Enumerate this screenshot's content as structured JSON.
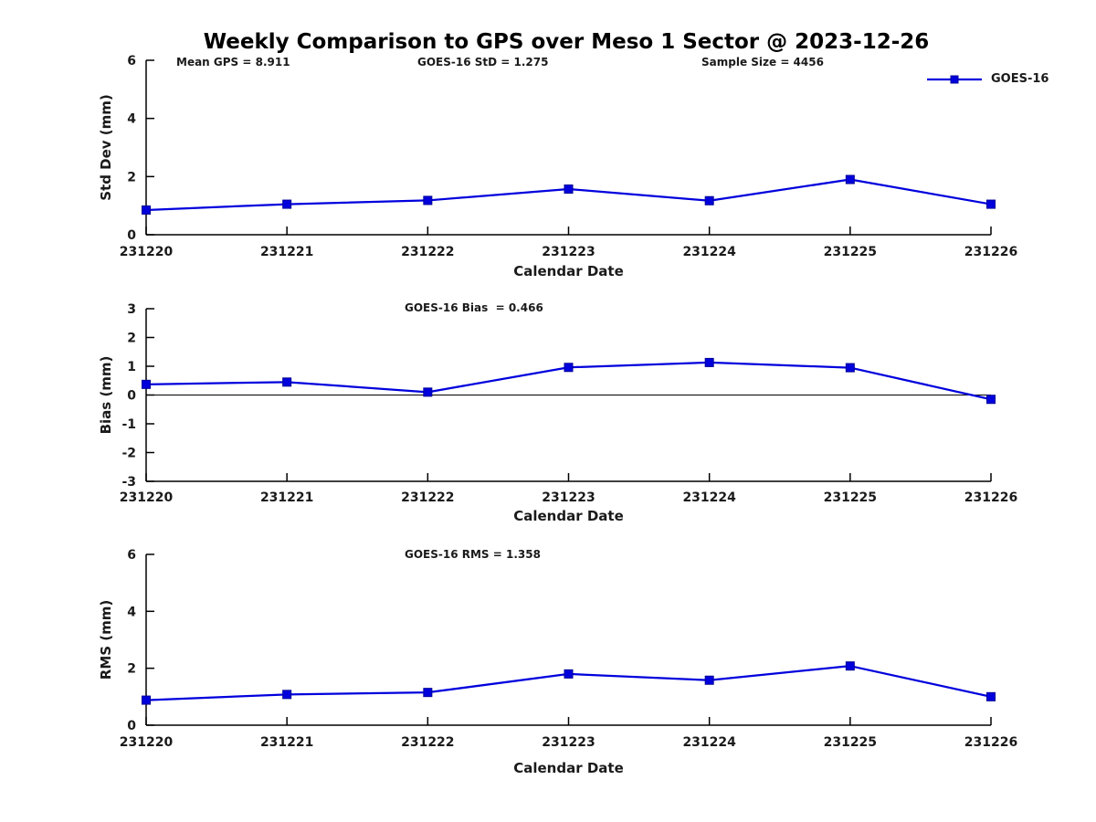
{
  "title": "Weekly Comparison to GPS over Meso 1 Sector @ 2023-12-26",
  "legend": {
    "label": "GOES-16"
  },
  "colors": {
    "series_line": "#0000dd",
    "marker_fill": "#0000dd",
    "marker_edge": "#000099",
    "axis": "#000000",
    "text": "#1a1a1a"
  },
  "subplot_annotations": {
    "mean_gps": "Mean GPS = 8.911",
    "goes16_std": "GOES-16 StD = 1.275",
    "sample_size": "Sample Size = 4456",
    "goes16_bias": "GOES-16 Bias  = 0.466",
    "goes16_rms": "GOES-16 RMS = 1.358"
  },
  "chart_data": [
    {
      "type": "line",
      "name": "std-dev-weekly",
      "title": "",
      "categories": [
        "231220",
        "231221",
        "231222",
        "231223",
        "231224",
        "231225",
        "231226"
      ],
      "series": [
        {
          "name": "GOES-16",
          "values": [
            0.85,
            1.05,
            1.18,
            1.57,
            1.17,
            1.9,
            1.05
          ]
        }
      ],
      "xlabel": "Calendar Date",
      "ylabel": "Std Dev (mm)",
      "ylim": [
        0,
        6
      ],
      "yticks": [
        0,
        2,
        4,
        6
      ],
      "zero_line": false,
      "grid": false,
      "legend_position": "top-right"
    },
    {
      "type": "line",
      "name": "bias-weekly",
      "title": "",
      "categories": [
        "231220",
        "231221",
        "231222",
        "231223",
        "231224",
        "231225",
        "231226"
      ],
      "series": [
        {
          "name": "GOES-16",
          "values": [
            0.37,
            0.45,
            0.1,
            0.96,
            1.13,
            0.95,
            -0.15
          ]
        }
      ],
      "xlabel": "Calendar Date",
      "ylabel": "Bias (mm)",
      "ylim": [
        -3,
        3
      ],
      "yticks": [
        -3,
        -2,
        -1,
        0,
        1,
        2,
        3
      ],
      "zero_line": true,
      "grid": false
    },
    {
      "type": "line",
      "name": "rms-weekly",
      "title": "",
      "categories": [
        "231220",
        "231221",
        "231222",
        "231223",
        "231224",
        "231225",
        "231226"
      ],
      "series": [
        {
          "name": "GOES-16",
          "values": [
            0.88,
            1.08,
            1.15,
            1.8,
            1.58,
            2.08,
            1.0
          ]
        }
      ],
      "xlabel": "Calendar Date",
      "ylabel": "RMS (mm)",
      "ylim": [
        0,
        6
      ],
      "yticks": [
        0,
        2,
        4,
        6
      ],
      "zero_line": false,
      "grid": false
    }
  ]
}
